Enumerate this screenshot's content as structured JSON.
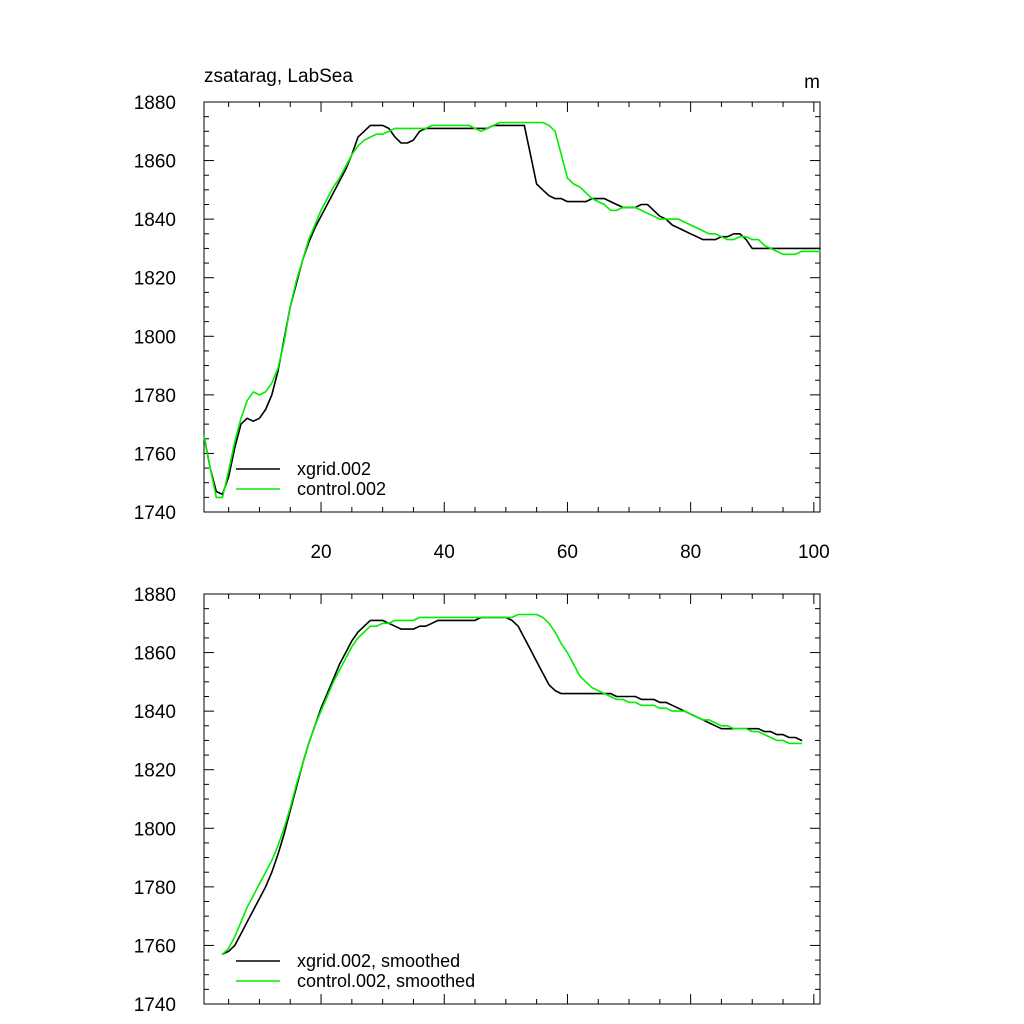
{
  "title_left": "zsatarag, LabSea",
  "units": "m",
  "colors": {
    "xgrid": "#000000",
    "control": "#00ee00"
  },
  "chart_data": [
    {
      "type": "line",
      "xlim": [
        1,
        101
      ],
      "ylim": [
        1740,
        1880
      ],
      "xticks": [
        20,
        40,
        60,
        80,
        100
      ],
      "yticks": [
        1740,
        1760,
        1780,
        1800,
        1820,
        1840,
        1860,
        1880
      ],
      "grid": false,
      "legend_position": "bottom-left",
      "series": [
        {
          "name": "xgrid.002",
          "color": "#000000",
          "x": [
            1,
            2,
            3,
            4,
            5,
            6,
            7,
            8,
            9,
            10,
            11,
            12,
            13,
            14,
            15,
            16,
            17,
            18,
            19,
            20,
            21,
            22,
            23,
            24,
            25,
            26,
            27,
            28,
            29,
            30,
            31,
            32,
            33,
            34,
            35,
            36,
            37,
            38,
            39,
            40,
            41,
            42,
            43,
            44,
            45,
            46,
            47,
            48,
            49,
            50,
            51,
            52,
            53,
            54,
            55,
            56,
            57,
            58,
            59,
            60,
            61,
            62,
            63,
            64,
            65,
            66,
            67,
            68,
            69,
            70,
            71,
            72,
            73,
            74,
            75,
            76,
            77,
            78,
            79,
            80,
            81,
            82,
            83,
            84,
            85,
            86,
            87,
            88,
            89,
            90,
            91,
            92,
            93,
            94,
            95,
            96,
            97,
            98,
            99,
            100,
            101
          ],
          "y": [
            1766,
            1755,
            1747,
            1746,
            1752,
            1762,
            1770,
            1772,
            1771,
            1772,
            1775,
            1780,
            1788,
            1799,
            1810,
            1818,
            1826,
            1832,
            1837,
            1841,
            1845,
            1849,
            1853,
            1857,
            1862,
            1868,
            1870,
            1872,
            1872,
            1872,
            1871,
            1868,
            1866,
            1866,
            1867,
            1870,
            1871,
            1871,
            1871,
            1871,
            1871,
            1871,
            1871,
            1871,
            1871,
            1871,
            1871,
            1872,
            1872,
            1872,
            1872,
            1872,
            1872,
            1862,
            1852,
            1850,
            1848,
            1847,
            1847,
            1846,
            1846,
            1846,
            1846,
            1847,
            1847,
            1847,
            1846,
            1845,
            1844,
            1844,
            1844,
            1845,
            1845,
            1843,
            1841,
            1840,
            1838,
            1837,
            1836,
            1835,
            1834,
            1833,
            1833,
            1833,
            1834,
            1834,
            1835,
            1835,
            1833,
            1830,
            1830,
            1830,
            1830,
            1830,
            1830,
            1830,
            1830,
            1830,
            1830,
            1830,
            1830
          ]
        },
        {
          "name": "control.002",
          "color": "#00ee00",
          "x": [
            1,
            2,
            3,
            4,
            5,
            6,
            7,
            8,
            9,
            10,
            11,
            12,
            13,
            14,
            15,
            16,
            17,
            18,
            19,
            20,
            21,
            22,
            23,
            24,
            25,
            26,
            27,
            28,
            29,
            30,
            31,
            32,
            33,
            34,
            35,
            36,
            37,
            38,
            39,
            40,
            41,
            42,
            43,
            44,
            45,
            46,
            47,
            48,
            49,
            50,
            51,
            52,
            53,
            54,
            55,
            56,
            57,
            58,
            59,
            60,
            61,
            62,
            63,
            64,
            65,
            66,
            67,
            68,
            69,
            70,
            71,
            72,
            73,
            74,
            75,
            76,
            77,
            78,
            79,
            80,
            81,
            82,
            83,
            84,
            85,
            86,
            87,
            88,
            89,
            90,
            91,
            92,
            93,
            94,
            95,
            96,
            97,
            98,
            99,
            100,
            101
          ],
          "y": [
            1766,
            1755,
            1745,
            1745,
            1754,
            1764,
            1772,
            1778,
            1781,
            1780,
            1781,
            1784,
            1789,
            1798,
            1810,
            1819,
            1826,
            1833,
            1838,
            1843,
            1847,
            1851,
            1854,
            1858,
            1862,
            1865,
            1867,
            1868,
            1869,
            1869,
            1870,
            1871,
            1871,
            1871,
            1871,
            1871,
            1871,
            1872,
            1872,
            1872,
            1872,
            1872,
            1872,
            1872,
            1871,
            1870,
            1871,
            1872,
            1873,
            1873,
            1873,
            1873,
            1873,
            1873,
            1873,
            1873,
            1872,
            1870,
            1862,
            1854,
            1852,
            1851,
            1849,
            1847,
            1846,
            1845,
            1843,
            1843,
            1844,
            1844,
            1844,
            1843,
            1842,
            1841,
            1840,
            1840,
            1840,
            1840,
            1839,
            1838,
            1837,
            1836,
            1835,
            1835,
            1834,
            1833,
            1833,
            1834,
            1834,
            1833,
            1833,
            1831,
            1830,
            1829,
            1828,
            1828,
            1828,
            1829,
            1829,
            1829,
            1829
          ]
        }
      ]
    },
    {
      "type": "line",
      "xlim": [
        1,
        101
      ],
      "ylim": [
        1740,
        1880
      ],
      "xticks": [
        20,
        40,
        60,
        80,
        100
      ],
      "yticks": [
        1740,
        1760,
        1780,
        1800,
        1820,
        1840,
        1860,
        1880
      ],
      "grid": false,
      "legend_position": "bottom-left",
      "series": [
        {
          "name": "xgrid.002, smoothed",
          "color": "#000000",
          "x": [
            4,
            5,
            6,
            7,
            8,
            9,
            10,
            11,
            12,
            13,
            14,
            15,
            16,
            17,
            18,
            19,
            20,
            21,
            22,
            23,
            24,
            25,
            26,
            27,
            28,
            29,
            30,
            31,
            32,
            33,
            34,
            35,
            36,
            37,
            38,
            39,
            40,
            41,
            42,
            43,
            44,
            45,
            46,
            47,
            48,
            49,
            50,
            51,
            52,
            53,
            54,
            55,
            56,
            57,
            58,
            59,
            60,
            61,
            62,
            63,
            64,
            65,
            66,
            67,
            68,
            69,
            70,
            71,
            72,
            73,
            74,
            75,
            76,
            77,
            78,
            79,
            80,
            81,
            82,
            83,
            84,
            85,
            86,
            87,
            88,
            89,
            90,
            91,
            92,
            93,
            94,
            95,
            96,
            97,
            98
          ],
          "y": [
            1757,
            1758,
            1760,
            1764,
            1768,
            1772,
            1776,
            1780,
            1785,
            1791,
            1798,
            1806,
            1814,
            1822,
            1829,
            1835,
            1841,
            1846,
            1851,
            1856,
            1860,
            1864,
            1867,
            1869,
            1871,
            1871,
            1871,
            1870,
            1869,
            1868,
            1868,
            1868,
            1869,
            1869,
            1870,
            1871,
            1871,
            1871,
            1871,
            1871,
            1871,
            1871,
            1872,
            1872,
            1872,
            1872,
            1872,
            1871,
            1869,
            1865,
            1861,
            1857,
            1853,
            1849,
            1847,
            1846,
            1846,
            1846,
            1846,
            1846,
            1846,
            1846,
            1846,
            1846,
            1845,
            1845,
            1845,
            1845,
            1844,
            1844,
            1844,
            1843,
            1843,
            1842,
            1841,
            1840,
            1839,
            1838,
            1837,
            1836,
            1835,
            1834,
            1834,
            1834,
            1834,
            1834,
            1834,
            1834,
            1833,
            1833,
            1832,
            1832,
            1831,
            1831,
            1830
          ]
        },
        {
          "name": "control.002, smoothed",
          "color": "#00ee00",
          "x": [
            4,
            5,
            6,
            7,
            8,
            9,
            10,
            11,
            12,
            13,
            14,
            15,
            16,
            17,
            18,
            19,
            20,
            21,
            22,
            23,
            24,
            25,
            26,
            27,
            28,
            29,
            30,
            31,
            32,
            33,
            34,
            35,
            36,
            37,
            38,
            39,
            40,
            41,
            42,
            43,
            44,
            45,
            46,
            47,
            48,
            49,
            50,
            51,
            52,
            53,
            54,
            55,
            56,
            57,
            58,
            59,
            60,
            61,
            62,
            63,
            64,
            65,
            66,
            67,
            68,
            69,
            70,
            71,
            72,
            73,
            74,
            75,
            76,
            77,
            78,
            79,
            80,
            81,
            82,
            83,
            84,
            85,
            86,
            87,
            88,
            89,
            90,
            91,
            92,
            93,
            94,
            95,
            96,
            97,
            98
          ],
          "y": [
            1757,
            1759,
            1763,
            1768,
            1773,
            1777,
            1781,
            1785,
            1789,
            1794,
            1800,
            1807,
            1815,
            1822,
            1829,
            1835,
            1840,
            1845,
            1850,
            1854,
            1858,
            1862,
            1865,
            1867,
            1869,
            1869,
            1870,
            1870,
            1871,
            1871,
            1871,
            1871,
            1872,
            1872,
            1872,
            1872,
            1872,
            1872,
            1872,
            1872,
            1872,
            1872,
            1872,
            1872,
            1872,
            1872,
            1872,
            1872,
            1873,
            1873,
            1873,
            1873,
            1872,
            1870,
            1867,
            1863,
            1860,
            1856,
            1852,
            1850,
            1848,
            1847,
            1846,
            1845,
            1844,
            1844,
            1843,
            1843,
            1842,
            1842,
            1842,
            1841,
            1841,
            1840,
            1840,
            1840,
            1839,
            1838,
            1837,
            1837,
            1836,
            1835,
            1835,
            1834,
            1834,
            1834,
            1833,
            1833,
            1832,
            1831,
            1830,
            1830,
            1829,
            1829,
            1829
          ]
        }
      ]
    }
  ]
}
